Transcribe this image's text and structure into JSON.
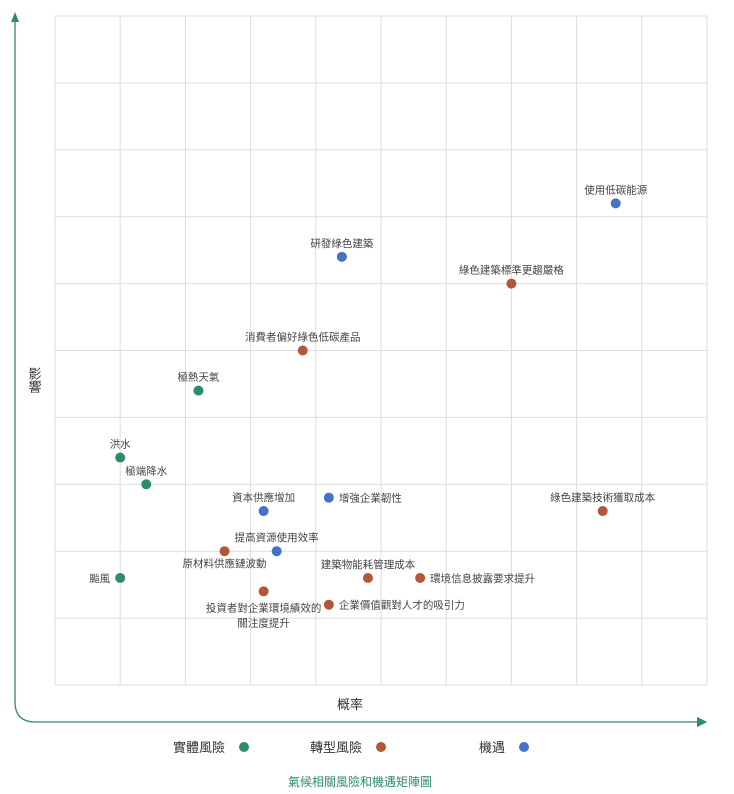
{
  "chart_data": {
    "type": "scatter",
    "title": "氣候相關風險和機遇矩陣圖",
    "xlabel": "概率",
    "ylabel": "影響",
    "xlim": [
      0,
      10
    ],
    "ylim": [
      0,
      10
    ],
    "grid": true,
    "legend_position": "bottom",
    "series": [
      {
        "name": "實體風險",
        "color": "#2e8b6f",
        "points": [
          {
            "label": "極熱天氣",
            "x": 2.2,
            "y": 4.4
          },
          {
            "label": "洪水",
            "x": 1.0,
            "y": 3.4
          },
          {
            "label": "極端降水",
            "x": 1.4,
            "y": 3.0
          },
          {
            "label": "颱風",
            "x": 1.0,
            "y": 1.6
          }
        ]
      },
      {
        "name": "轉型風險",
        "color": "#b5563a",
        "points": [
          {
            "label": "綠色建築標準更趨嚴格",
            "x": 7.0,
            "y": 6.0
          },
          {
            "label": "消費者偏好綠色低碳產品",
            "x": 3.8,
            "y": 5.0
          },
          {
            "label": "綠色建築技術獲取成本",
            "x": 8.4,
            "y": 2.6
          },
          {
            "label": "原材料供應鏈波動",
            "x": 2.6,
            "y": 2.0
          },
          {
            "label": "建築物能耗管理成本",
            "x": 4.8,
            "y": 1.6
          },
          {
            "label": "環境信息披露要求提升",
            "x": 5.6,
            "y": 1.6
          },
          {
            "label": "投資者對企業環境績效的關注度提升",
            "x": 3.2,
            "y": 1.4
          },
          {
            "label": "企業價值觀對人才的吸引力",
            "x": 4.2,
            "y": 1.2
          }
        ]
      },
      {
        "name": "機遇",
        "color": "#4472c4",
        "points": [
          {
            "label": "使用低碳能源",
            "x": 8.6,
            "y": 7.2
          },
          {
            "label": "研發綠色建築",
            "x": 4.4,
            "y": 6.4
          },
          {
            "label": "資本供應增加",
            "x": 3.2,
            "y": 2.6
          },
          {
            "label": "增強企業韌性",
            "x": 4.2,
            "y": 2.8
          },
          {
            "label": "提高資源使用效率",
            "x": 3.4,
            "y": 2.0
          }
        ]
      }
    ]
  }
}
